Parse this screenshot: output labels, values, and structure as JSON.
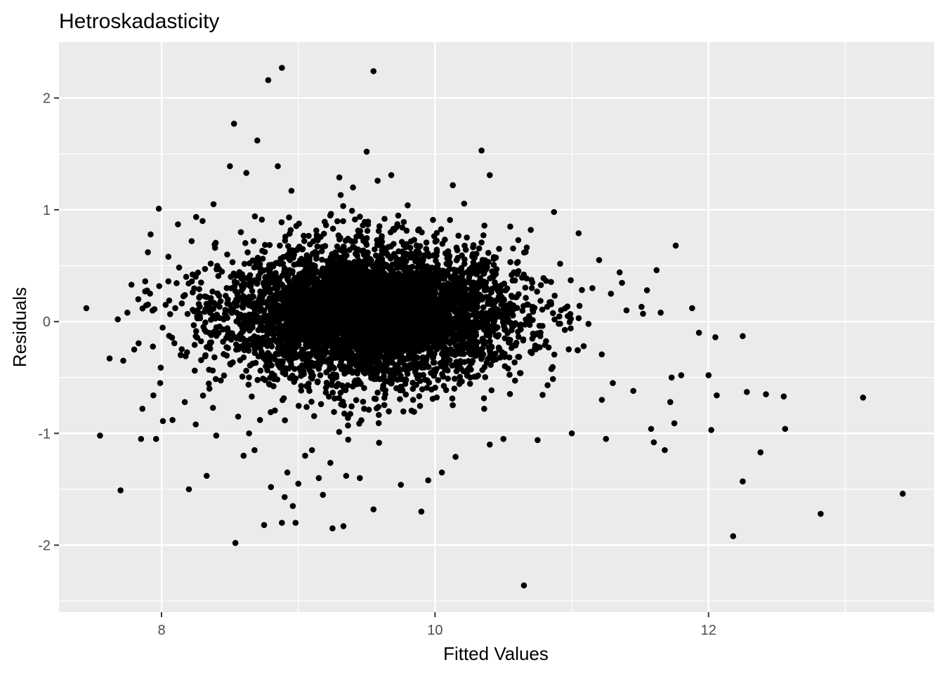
{
  "chart_data": {
    "type": "scatter",
    "title": "Hetroskadasticity",
    "xlabel": "Fitted Values",
    "ylabel": "Residuals",
    "xlim": [
      7.25,
      13.65
    ],
    "ylim": [
      -2.6,
      2.5
    ],
    "x_ticks": [
      8,
      10,
      12
    ],
    "y_ticks": [
      -2,
      -1,
      0,
      1,
      2
    ],
    "x_tick_labels": [
      "8",
      "10",
      "12"
    ],
    "y_tick_labels": [
      "-2",
      "-1",
      "0",
      "1",
      "2"
    ],
    "grid": true,
    "point_color": "#000000",
    "panel_color": "#ebebeb",
    "points": [
      [
        7.45,
        0.12
      ],
      [
        7.55,
        -1.02
      ],
      [
        7.62,
        -0.33
      ],
      [
        7.68,
        0.02
      ],
      [
        7.7,
        -1.51
      ],
      [
        7.72,
        -0.35
      ],
      [
        7.75,
        0.08
      ],
      [
        7.78,
        0.33
      ],
      [
        7.8,
        -0.25
      ],
      [
        7.83,
        0.2
      ],
      [
        7.85,
        -1.05
      ],
      [
        7.86,
        -0.78
      ],
      [
        7.88,
        0.27
      ],
      [
        7.9,
        0.62
      ],
      [
        7.92,
        0.78
      ],
      [
        7.94,
        -0.66
      ],
      [
        7.96,
        -1.05
      ],
      [
        7.98,
        1.01
      ],
      [
        7.99,
        -0.55
      ],
      [
        8.01,
        -0.89
      ],
      [
        8.03,
        0.15
      ],
      [
        8.05,
        0.36
      ],
      [
        8.05,
        0.58
      ],
      [
        8.08,
        -0.88
      ],
      [
        8.1,
        0.12
      ],
      [
        8.12,
        0.87
      ],
      [
        8.14,
        -0.3
      ],
      [
        8.17,
        -0.72
      ],
      [
        8.18,
        0.4
      ],
      [
        8.2,
        -1.5
      ],
      [
        8.22,
        0.72
      ],
      [
        8.25,
        -0.92
      ],
      [
        8.28,
        0.05
      ],
      [
        8.3,
        0.9
      ],
      [
        8.33,
        -1.38
      ],
      [
        8.35,
        -0.6
      ],
      [
        8.38,
        1.05
      ],
      [
        8.4,
        -1.02
      ],
      [
        8.42,
        0.47
      ],
      [
        8.45,
        -0.18
      ],
      [
        8.48,
        0.6
      ],
      [
        8.5,
        1.39
      ],
      [
        8.53,
        1.77
      ],
      [
        8.54,
        -1.98
      ],
      [
        8.56,
        -0.85
      ],
      [
        8.58,
        0.8
      ],
      [
        8.6,
        -1.2
      ],
      [
        8.62,
        1.33
      ],
      [
        8.64,
        -1.0
      ],
      [
        8.68,
        -1.15
      ],
      [
        8.7,
        1.62
      ],
      [
        8.72,
        -0.88
      ],
      [
        8.75,
        -1.82
      ],
      [
        8.78,
        2.16
      ],
      [
        8.8,
        -1.48
      ],
      [
        8.85,
        1.39
      ],
      [
        8.88,
        2.27
      ],
      [
        8.88,
        -1.8
      ],
      [
        8.9,
        -1.57
      ],
      [
        8.92,
        -1.35
      ],
      [
        8.95,
        1.17
      ],
      [
        8.96,
        -1.65
      ],
      [
        8.98,
        -1.8
      ],
      [
        9.0,
        -1.45
      ],
      [
        9.05,
        -1.2
      ],
      [
        9.1,
        -1.15
      ],
      [
        9.15,
        -1.4
      ],
      [
        9.18,
        -1.55
      ],
      [
        9.25,
        -1.85
      ],
      [
        9.3,
        1.29
      ],
      [
        9.33,
        -1.83
      ],
      [
        9.35,
        -1.38
      ],
      [
        9.4,
        1.2
      ],
      [
        9.45,
        -1.4
      ],
      [
        9.5,
        1.52
      ],
      [
        9.55,
        2.24
      ],
      [
        9.55,
        -1.68
      ],
      [
        9.58,
        1.26
      ],
      [
        9.68,
        1.31
      ],
      [
        9.75,
        -1.46
      ],
      [
        9.8,
        1.04
      ],
      [
        9.9,
        -1.7
      ],
      [
        9.95,
        -1.42
      ],
      [
        10.05,
        -1.35
      ],
      [
        10.13,
        1.22
      ],
      [
        10.15,
        -1.21
      ],
      [
        10.34,
        1.53
      ],
      [
        10.4,
        1.31
      ],
      [
        10.4,
        -1.1
      ],
      [
        10.5,
        -1.05
      ],
      [
        10.55,
        0.85
      ],
      [
        10.7,
        0.82
      ],
      [
        10.65,
        -2.36
      ],
      [
        10.75,
        -1.06
      ],
      [
        10.87,
        0.98
      ],
      [
        11.0,
        -1.0
      ],
      [
        11.05,
        0.79
      ],
      [
        11.2,
        0.55
      ],
      [
        11.22,
        -0.7
      ],
      [
        11.25,
        -1.05
      ],
      [
        11.3,
        -0.55
      ],
      [
        11.35,
        0.44
      ],
      [
        11.4,
        0.1
      ],
      [
        11.45,
        -0.62
      ],
      [
        11.55,
        0.28
      ],
      [
        11.58,
        -0.96
      ],
      [
        11.62,
        0.46
      ],
      [
        11.6,
        -1.08
      ],
      [
        11.65,
        0.08
      ],
      [
        11.68,
        -1.15
      ],
      [
        11.72,
        -0.72
      ],
      [
        11.73,
        -0.5
      ],
      [
        11.75,
        -0.91
      ],
      [
        11.76,
        0.68
      ],
      [
        11.8,
        -0.48
      ],
      [
        11.88,
        0.12
      ],
      [
        11.93,
        -0.1
      ],
      [
        12.0,
        -0.48
      ],
      [
        12.02,
        -0.97
      ],
      [
        12.05,
        -0.14
      ],
      [
        12.06,
        -0.66
      ],
      [
        12.18,
        -1.92
      ],
      [
        12.25,
        -0.13
      ],
      [
        12.25,
        -1.43
      ],
      [
        12.28,
        -0.63
      ],
      [
        12.38,
        -1.17
      ],
      [
        12.42,
        -0.65
      ],
      [
        12.55,
        -0.67
      ],
      [
        12.56,
        -0.96
      ],
      [
        12.82,
        -1.72
      ],
      [
        13.13,
        -0.68
      ],
      [
        13.42,
        -1.54
      ]
    ]
  }
}
